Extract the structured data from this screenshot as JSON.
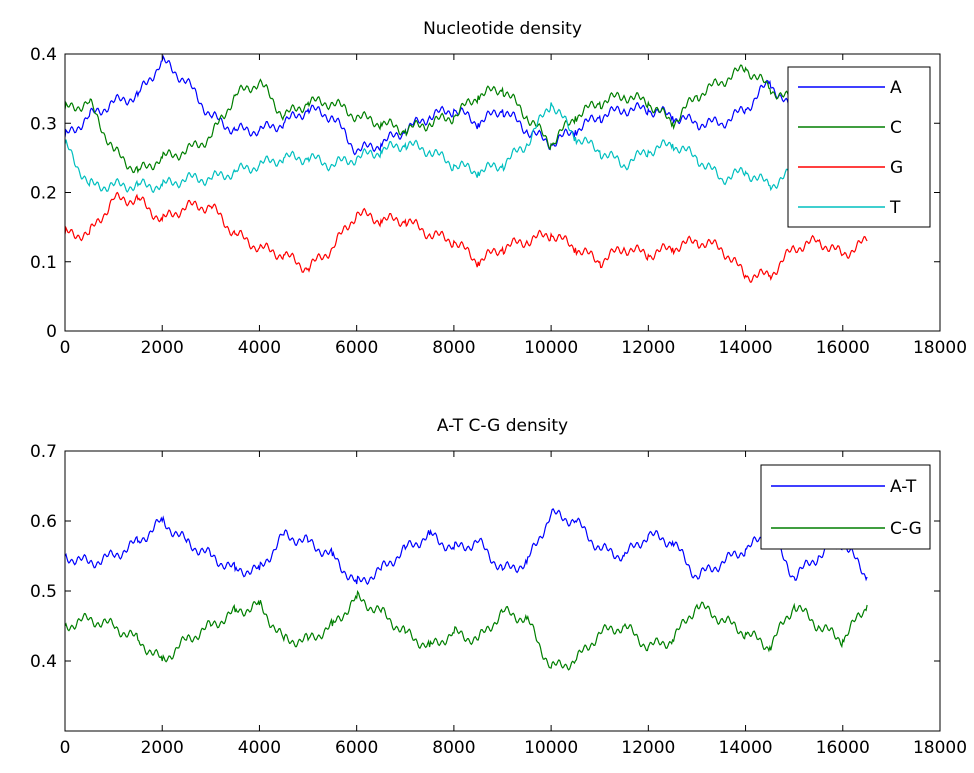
{
  "chart_data": [
    {
      "type": "line",
      "title": "Nucleotide density",
      "xlabel": "",
      "ylabel": "",
      "xlim": [
        0,
        18000
      ],
      "ylim": [
        0,
        0.4
      ],
      "xticks": [
        0,
        2000,
        4000,
        6000,
        8000,
        10000,
        12000,
        14000,
        16000,
        18000
      ],
      "yticks": [
        0,
        0.1,
        0.2,
        0.3,
        0.4
      ],
      "xtick_labels": [
        "0",
        "2000",
        "4000",
        "6000",
        "8000",
        "10000",
        "12000",
        "14000",
        "16000",
        "18000"
      ],
      "ytick_labels": [
        "0",
        "0.1",
        "0.2",
        "0.3",
        "0.4"
      ],
      "grid": false,
      "legend_position": "top-right",
      "series": [
        {
          "name": "A",
          "color": "#0000ff",
          "x": [
            0,
            500,
            1000,
            1500,
            2000,
            2500,
            3000,
            3500,
            4000,
            4500,
            5000,
            5500,
            6000,
            6500,
            7000,
            7500,
            8000,
            8500,
            9000,
            9500,
            10000,
            10500,
            11000,
            11500,
            12000,
            12500,
            13000,
            13500,
            14000,
            14500,
            15000
          ],
          "y": [
            0.28,
            0.31,
            0.33,
            0.34,
            0.39,
            0.36,
            0.31,
            0.29,
            0.29,
            0.3,
            0.32,
            0.31,
            0.26,
            0.27,
            0.29,
            0.31,
            0.32,
            0.3,
            0.32,
            0.29,
            0.27,
            0.29,
            0.31,
            0.32,
            0.32,
            0.31,
            0.3,
            0.3,
            0.32,
            0.36,
            0.31
          ]
        },
        {
          "name": "C",
          "color": "#007f00",
          "x": [
            0,
            500,
            1000,
            1500,
            2000,
            2500,
            3000,
            3500,
            4000,
            4500,
            5000,
            5500,
            6000,
            6500,
            7000,
            7500,
            8000,
            8500,
            9000,
            9500,
            10000,
            10500,
            11000,
            11500,
            12000,
            12500,
            13000,
            13500,
            14000,
            14500,
            15000
          ],
          "y": [
            0.32,
            0.33,
            0.26,
            0.23,
            0.25,
            0.26,
            0.28,
            0.34,
            0.36,
            0.31,
            0.33,
            0.33,
            0.31,
            0.3,
            0.29,
            0.3,
            0.31,
            0.34,
            0.35,
            0.31,
            0.27,
            0.31,
            0.33,
            0.34,
            0.33,
            0.3,
            0.34,
            0.36,
            0.38,
            0.35,
            0.33
          ]
        },
        {
          "name": "G",
          "color": "#ff0000",
          "x": [
            0,
            500,
            1000,
            1500,
            2000,
            2500,
            3000,
            3500,
            4000,
            4500,
            5000,
            5500,
            6000,
            6500,
            7000,
            7500,
            8000,
            8500,
            9000,
            9500,
            10000,
            10500,
            11000,
            11500,
            12000,
            12500,
            13000,
            13500,
            14000,
            14500,
            15000,
            15500,
            16000,
            16500
          ],
          "y": [
            0.14,
            0.14,
            0.19,
            0.19,
            0.16,
            0.18,
            0.18,
            0.14,
            0.12,
            0.11,
            0.09,
            0.12,
            0.17,
            0.16,
            0.16,
            0.14,
            0.13,
            0.1,
            0.12,
            0.13,
            0.14,
            0.12,
            0.1,
            0.12,
            0.11,
            0.12,
            0.13,
            0.12,
            0.08,
            0.08,
            0.12,
            0.13,
            0.11,
            0.13
          ]
        },
        {
          "name": "T",
          "color": "#00bfbf",
          "x": [
            0,
            500,
            1000,
            1500,
            2000,
            2500,
            3000,
            3500,
            4000,
            4500,
            5000,
            5500,
            6000,
            6500,
            7000,
            7500,
            8000,
            8500,
            9000,
            9500,
            10000,
            10500,
            11000,
            11500,
            12000,
            12500,
            13000,
            13500,
            14000,
            14500,
            15000
          ],
          "y": [
            0.27,
            0.21,
            0.21,
            0.21,
            0.21,
            0.22,
            0.22,
            0.23,
            0.24,
            0.25,
            0.25,
            0.24,
            0.25,
            0.26,
            0.27,
            0.26,
            0.24,
            0.23,
            0.24,
            0.27,
            0.33,
            0.28,
            0.26,
            0.24,
            0.26,
            0.27,
            0.25,
            0.22,
            0.23,
            0.21,
            0.23
          ]
        }
      ]
    },
    {
      "type": "line",
      "title": "A-T C-G density",
      "xlabel": "",
      "ylabel": "",
      "xlim": [
        0,
        18000
      ],
      "ylim": [
        0.3,
        0.7
      ],
      "xticks": [
        0,
        2000,
        4000,
        6000,
        8000,
        10000,
        12000,
        14000,
        16000,
        18000
      ],
      "yticks": [
        0.4,
        0.5,
        0.6,
        0.7
      ],
      "xtick_labels": [
        "0",
        "2000",
        "4000",
        "6000",
        "8000",
        "10000",
        "12000",
        "14000",
        "16000",
        "18000"
      ],
      "ytick_labels": [
        "0.4",
        "0.5",
        "0.6",
        "0.7"
      ],
      "grid": false,
      "legend_position": "top-right",
      "series": [
        {
          "name": "A-T",
          "color": "#0000ff",
          "x": [
            0,
            500,
            1000,
            1500,
            2000,
            2500,
            3000,
            3500,
            4000,
            4500,
            5000,
            5500,
            6000,
            6500,
            7000,
            7500,
            8000,
            8500,
            9000,
            9500,
            10000,
            10500,
            11000,
            11500,
            12000,
            12500,
            13000,
            13500,
            14000,
            14500,
            15000,
            15500,
            16000,
            16500
          ],
          "y": [
            0.55,
            0.54,
            0.55,
            0.57,
            0.6,
            0.57,
            0.55,
            0.53,
            0.53,
            0.58,
            0.57,
            0.55,
            0.51,
            0.53,
            0.56,
            0.58,
            0.56,
            0.57,
            0.53,
            0.54,
            0.61,
            0.6,
            0.56,
            0.55,
            0.58,
            0.57,
            0.52,
            0.54,
            0.56,
            0.58,
            0.52,
            0.55,
            0.57,
            0.52
          ]
        },
        {
          "name": "C-G",
          "color": "#007f00",
          "x": [
            0,
            500,
            1000,
            1500,
            2000,
            2500,
            3000,
            3500,
            4000,
            4500,
            5000,
            5500,
            6000,
            6500,
            7000,
            7500,
            8000,
            8500,
            9000,
            9500,
            10000,
            10500,
            11000,
            11500,
            12000,
            12500,
            13000,
            13500,
            14000,
            14500,
            15000,
            15500,
            16000,
            16500
          ],
          "y": [
            0.45,
            0.46,
            0.45,
            0.43,
            0.4,
            0.43,
            0.45,
            0.47,
            0.48,
            0.43,
            0.43,
            0.45,
            0.49,
            0.47,
            0.44,
            0.42,
            0.44,
            0.43,
            0.47,
            0.46,
            0.39,
            0.4,
            0.44,
            0.45,
            0.42,
            0.43,
            0.48,
            0.46,
            0.44,
            0.42,
            0.48,
            0.45,
            0.43,
            0.48
          ]
        }
      ]
    }
  ]
}
